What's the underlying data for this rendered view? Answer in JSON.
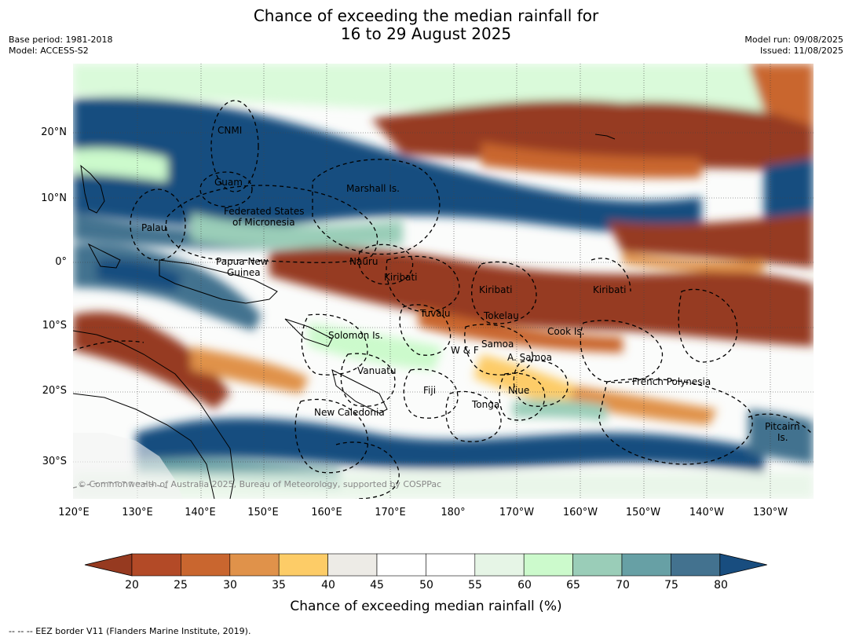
{
  "header": {
    "title_line1": "Chance of exceeding the median rainfall for",
    "title_line2": "16 to 29 August 2025",
    "base_period": "Base period: 1981-2018",
    "model": "Model: ACCESS-S2",
    "model_run": "Model run: 09/08/2025",
    "issued": "Issued: 11/08/2025"
  },
  "map": {
    "lat_labels": [
      "20°N",
      "10°N",
      "0°",
      "10°S",
      "20°S",
      "30°S"
    ],
    "lon_labels": [
      "120°E",
      "130°E",
      "140°E",
      "150°E",
      "160°E",
      "170°E",
      "180°",
      "170°W",
      "160°W",
      "150°W",
      "140°W",
      "130°W"
    ],
    "places": {
      "cnmi": "CNMI",
      "guam": "Guam",
      "marshall": "Marshall Is.",
      "fsm1": "Federated States",
      "fsm2": "of Micronesia",
      "palau": "Palau",
      "png1": "Papua New",
      "png2": "Guinea",
      "nauru": "Nauru",
      "kiribati": "Kiribati",
      "tuvalu": "Tuvalu",
      "tokelau": "Tokelau",
      "cook": "Cook Is.",
      "solomon": "Solomon Is.",
      "samoa": "Samoa",
      "wf": "W & F",
      "asamoa": "A. Samoa",
      "vanuatu": "Vanuatu",
      "fiji": "Fiji",
      "niue": "Niue",
      "tonga": "Tonga",
      "fp": "French Polynesia",
      "newcal": "New Caledonia",
      "pitcairn1": "Pitcairn",
      "pitcairn2": "Is."
    },
    "copyright": "© Commonwealth of Australia 2025, Bureau of Meteorology, supported by COSPPac"
  },
  "colorbar": {
    "ticks": [
      "20",
      "25",
      "30",
      "35",
      "40",
      "45",
      "50",
      "55",
      "60",
      "65",
      "70",
      "75",
      "80"
    ],
    "colors": [
      "#963a20",
      "#b34a27",
      "#c9662f",
      "#e0924a",
      "#fdcc67",
      "#edebe6",
      "#ffffff",
      "#ffffff",
      "#e6f5e6",
      "#ccfacc",
      "#9acdb8",
      "#67a0a5",
      "#43728f",
      "#184d7f"
    ],
    "label": "Chance of exceeding median rainfall (%)"
  },
  "footer": "--  --  -- EEZ border V11 (Flanders Marine Institute, 2019)."
}
